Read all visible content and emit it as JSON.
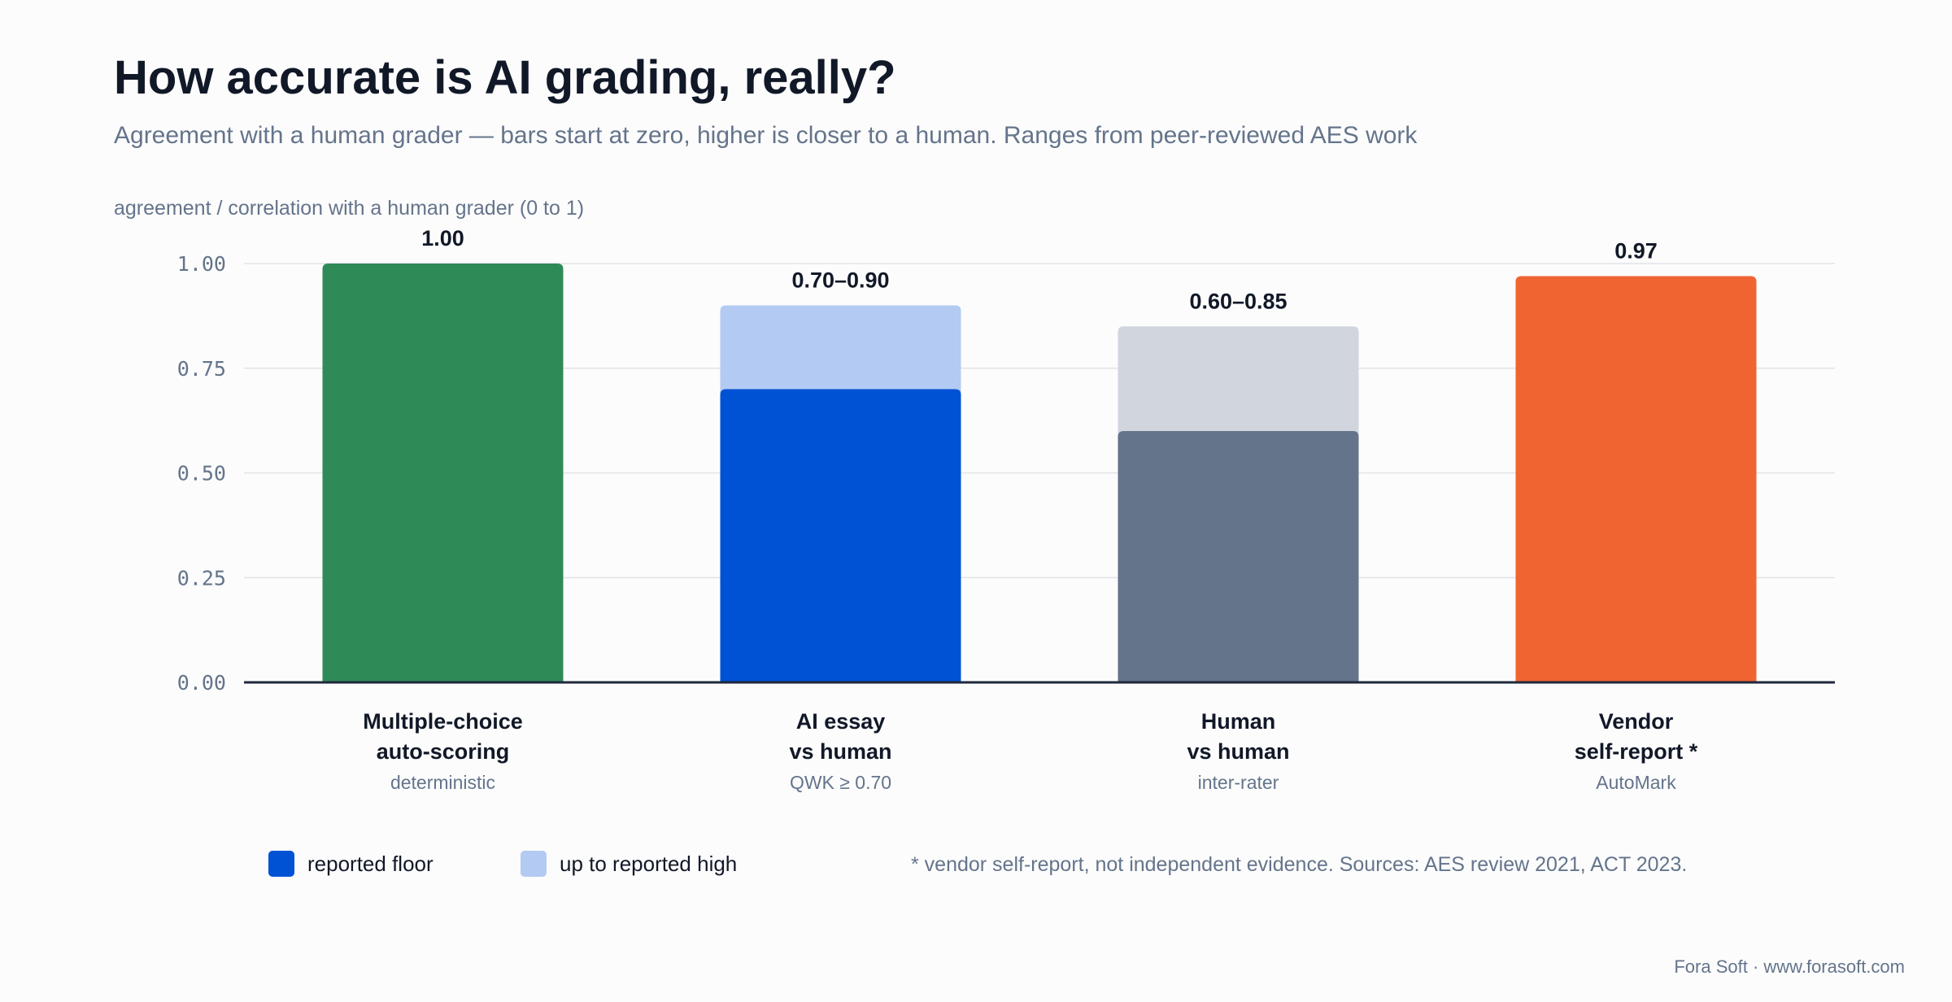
{
  "title": "How accurate is AI grading, really?",
  "subtitle": "Agreement with a human grader — bars start at zero, higher is closer to a human. Ranges from peer-reviewed AES work",
  "colors": {
    "grid": "#e2e4e8",
    "axis": "#1e293b",
    "tick_text": "#64748b",
    "label_text": "#111827",
    "sublabel_text": "#64748b"
  },
  "chart_data": {
    "type": "bar",
    "ylabel": "agreement / correlation with a human grader (0 to 1)",
    "ylim": [
      0,
      1
    ],
    "y_ticks": [
      "0.00",
      "0.25",
      "0.50",
      "0.75",
      "1.00"
    ],
    "y_tick_values": [
      0,
      0.25,
      0.5,
      0.75,
      1.0
    ],
    "grid": true,
    "legend_position": "bottom-left",
    "categories": [
      {
        "label_lines": [
          "Multiple-choice",
          "auto-scoring"
        ],
        "sublabel": "deterministic",
        "low": 1.0,
        "high": 1.0,
        "value_label": "1.00",
        "floor_color": "#2e8b57",
        "high_color": "#2e8b57"
      },
      {
        "label_lines": [
          "AI essay",
          "vs human"
        ],
        "sublabel": "QWK ≥ 0.70",
        "low": 0.7,
        "high": 0.9,
        "value_label": "0.70–0.90",
        "floor_color": "#0052d4",
        "high_color": "#b3caf2"
      },
      {
        "label_lines": [
          "Human",
          "vs human"
        ],
        "sublabel": "inter-rater",
        "low": 0.6,
        "high": 0.85,
        "value_label": "0.60–0.85",
        "floor_color": "#64748b",
        "high_color": "#d1d5de"
      },
      {
        "label_lines": [
          "Vendor",
          "self-report *"
        ],
        "sublabel": "AutoMark",
        "low": 0.97,
        "high": 0.97,
        "value_label": "0.97",
        "floor_color": "#f06432",
        "high_color": "#f06432"
      }
    ]
  },
  "legend": {
    "items": [
      {
        "label": "reported floor",
        "color": "#0052d4"
      },
      {
        "label": "up to reported high",
        "color": "#b3caf2"
      }
    ]
  },
  "footnote": "* vendor self-report, not independent evidence. Sources: AES review 2021, ACT 2023.",
  "credit": "Fora Soft · www.forasoft.com"
}
